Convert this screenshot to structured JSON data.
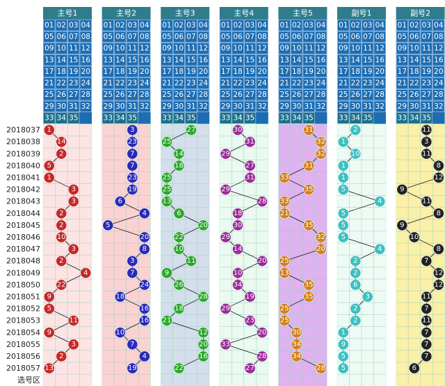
{
  "periods": [
    "2018037",
    "2018038",
    "2018039",
    "2018040",
    "2018041",
    "2018042",
    "2018043",
    "2018044",
    "2018045",
    "2018046",
    "2018047",
    "2018048",
    "2018049",
    "2018050",
    "2018051",
    "2018052",
    "2018053",
    "2018054",
    "2018055",
    "2018056",
    "2018057"
  ],
  "footer": "选号区",
  "grid": [
    "01",
    "02",
    "03",
    "04",
    "05",
    "06",
    "07",
    "08",
    "09",
    "10",
    "11",
    "12",
    "13",
    "14",
    "15",
    "16",
    "17",
    "18",
    "19",
    "20",
    "21",
    "22",
    "23",
    "24",
    "25",
    "26",
    "27",
    "28",
    "29",
    "30",
    "31",
    "32",
    "33",
    "34",
    "35"
  ],
  "columns": [
    {
      "label": "主号1",
      "color": "#c62828",
      "bg": "#fde4e4",
      "values": [
        1,
        14,
        2,
        5,
        1,
        3,
        3,
        2,
        2,
        10,
        3,
        2,
        4,
        22,
        9,
        5,
        11,
        9,
        3,
        2,
        13
      ]
    },
    {
      "label": "主号2",
      "color": "#2a2ab8",
      "bg": "#fbd2d2",
      "values": [
        3,
        23,
        7,
        7,
        23,
        19,
        6,
        4,
        5,
        20,
        8,
        3,
        7,
        24,
        18,
        16,
        16,
        10,
        7,
        4,
        19
      ]
    },
    {
      "label": "主号3",
      "color": "#2aa82a",
      "bg": "#d3dfea",
      "values": [
        27,
        25,
        14,
        18,
        25,
        25,
        13,
        6,
        20,
        22,
        10,
        11,
        9,
        26,
        28,
        18,
        21,
        12,
        20,
        16,
        22
      ]
    },
    {
      "label": "主号4",
      "color": "#9a2a9a",
      "bg": "#eafaf0",
      "values": [
        30,
        31,
        29,
        27,
        31,
        29,
        28,
        18,
        30,
        29,
        14,
        20,
        10,
        34,
        19,
        29,
        23,
        20,
        33,
        28,
        27
      ]
    },
    {
      "label": "主号5",
      "color": "#d08020",
      "bg": "#dfb2f0",
      "values": [
        31,
        32,
        32,
        31,
        33,
        35,
        33,
        21,
        35,
        32,
        20,
        25,
        13,
        35,
        35,
        25,
        25,
        30,
        34,
        34,
        28
      ]
    },
    {
      "label": "副号1",
      "color": "#3cc0c0",
      "bg": "#eefaf4",
      "values": [
        2,
        1,
        10,
        1,
        1,
        5,
        4,
        5,
        5,
        5,
        4,
        2,
        2,
        6,
        3,
        2,
        2,
        1,
        9,
        5,
        5
      ]
    },
    {
      "label": "副号2",
      "color": "#222222",
      "bg": "#fbf0a8",
      "values": [
        11,
        3,
        11,
        8,
        12,
        9,
        11,
        8,
        9,
        10,
        8,
        7,
        12,
        12,
        11,
        7,
        11,
        7,
        7,
        7,
        6
      ]
    }
  ]
}
